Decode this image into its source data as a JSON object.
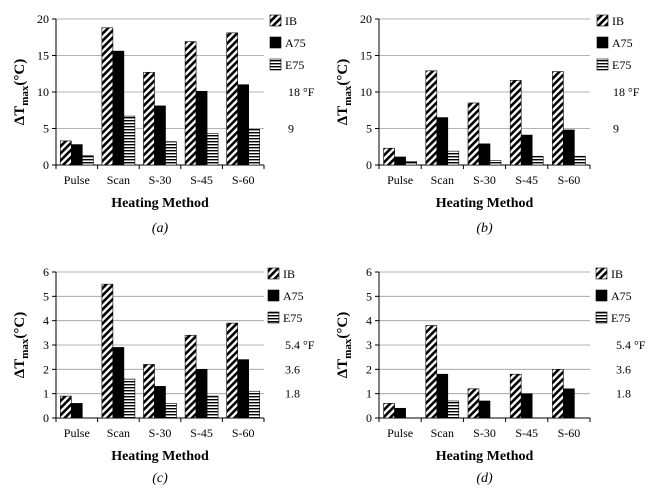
{
  "figure": {
    "panels": [
      {
        "label": "(a)"
      },
      {
        "label": "(b)"
      },
      {
        "label": "(c)"
      },
      {
        "label": "(d)"
      }
    ]
  },
  "chart_data": [
    {
      "type": "bar",
      "label": "(a)",
      "categories": [
        "Pulse",
        "Scan",
        "S-30",
        "S-45",
        "S-60"
      ],
      "series": [
        {
          "name": "IB",
          "values": [
            3.3,
            18.8,
            12.7,
            16.9,
            18.1
          ]
        },
        {
          "name": "A75",
          "values": [
            2.8,
            15.6,
            8.1,
            10.1,
            11.0
          ]
        },
        {
          "name": "E75",
          "values": [
            1.3,
            6.7,
            3.2,
            4.3,
            4.9
          ]
        }
      ],
      "xlabel": "Heating Method",
      "ylabel_main": "ΔT",
      "ylabel_sub": "max",
      "ylabel_unit": "(°C)",
      "ylim": [
        0,
        20
      ],
      "yticks": [
        0,
        5,
        10,
        15,
        20
      ],
      "grid": true,
      "legend": "top-right",
      "secondary_ticks": [
        {
          "value": 5,
          "label": "9"
        },
        {
          "value": 10,
          "label": "18 °F"
        }
      ]
    },
    {
      "type": "bar",
      "label": "(b)",
      "categories": [
        "Pulse",
        "Scan",
        "S-30",
        "S-45",
        "S-60"
      ],
      "series": [
        {
          "name": "IB",
          "values": [
            2.3,
            12.9,
            8.5,
            11.6,
            12.8
          ]
        },
        {
          "name": "A75",
          "values": [
            1.1,
            6.5,
            2.9,
            4.1,
            4.8
          ]
        },
        {
          "name": "E75",
          "values": [
            0.5,
            1.9,
            0.6,
            1.2,
            1.2
          ]
        }
      ],
      "xlabel": "Heating Method",
      "ylabel_main": "ΔT",
      "ylabel_sub": "max",
      "ylabel_unit": "(°C)",
      "ylim": [
        0,
        20
      ],
      "yticks": [
        0,
        5,
        10,
        15,
        20
      ],
      "grid": true,
      "legend": "top-right",
      "secondary_ticks": [
        {
          "value": 5,
          "label": "9"
        },
        {
          "value": 10,
          "label": "18 °F"
        }
      ]
    },
    {
      "type": "bar",
      "label": "(c)",
      "categories": [
        "Pulse",
        "Scan",
        "S-30",
        "S-45",
        "S-60"
      ],
      "series": [
        {
          "name": "IB",
          "values": [
            0.9,
            5.5,
            2.2,
            3.4,
            3.9
          ]
        },
        {
          "name": "A75",
          "values": [
            0.6,
            2.9,
            1.3,
            2.0,
            2.4
          ]
        },
        {
          "name": "E75",
          "values": [
            0.0,
            1.6,
            0.6,
            0.9,
            1.1
          ]
        }
      ],
      "xlabel": "Heating Method",
      "ylabel_main": "ΔT",
      "ylabel_sub": "max",
      "ylabel_unit": "(°C)",
      "ylim": [
        0,
        6
      ],
      "yticks": [
        0,
        1,
        2,
        3,
        4,
        5,
        6
      ],
      "grid": true,
      "legend": "top-right",
      "secondary_ticks": [
        {
          "value": 1,
          "label": "1.8"
        },
        {
          "value": 2,
          "label": "3.6"
        },
        {
          "value": 3,
          "label": "5.4 °F"
        }
      ]
    },
    {
      "type": "bar",
      "label": "(d)",
      "categories": [
        "Pulse",
        "Scan",
        "S-30",
        "S-45",
        "S-60"
      ],
      "series": [
        {
          "name": "IB",
          "values": [
            0.6,
            3.8,
            1.2,
            1.8,
            2.0
          ]
        },
        {
          "name": "A75",
          "values": [
            0.4,
            1.8,
            0.7,
            1.0,
            1.2
          ]
        },
        {
          "name": "E75",
          "values": [
            0.0,
            0.7,
            0.0,
            0.0,
            0.0
          ]
        }
      ],
      "xlabel": "Heating Method",
      "ylabel_main": "ΔT",
      "ylabel_sub": "max",
      "ylabel_unit": "(°C)",
      "ylim": [
        0,
        6
      ],
      "yticks": [
        0,
        1,
        2,
        3,
        4,
        5,
        6
      ],
      "grid": true,
      "legend": "top-right",
      "secondary_ticks": [
        {
          "value": 1,
          "label": "1.8"
        },
        {
          "value": 2,
          "label": "3.6"
        },
        {
          "value": 3,
          "label": "5.4 °F"
        }
      ]
    }
  ]
}
